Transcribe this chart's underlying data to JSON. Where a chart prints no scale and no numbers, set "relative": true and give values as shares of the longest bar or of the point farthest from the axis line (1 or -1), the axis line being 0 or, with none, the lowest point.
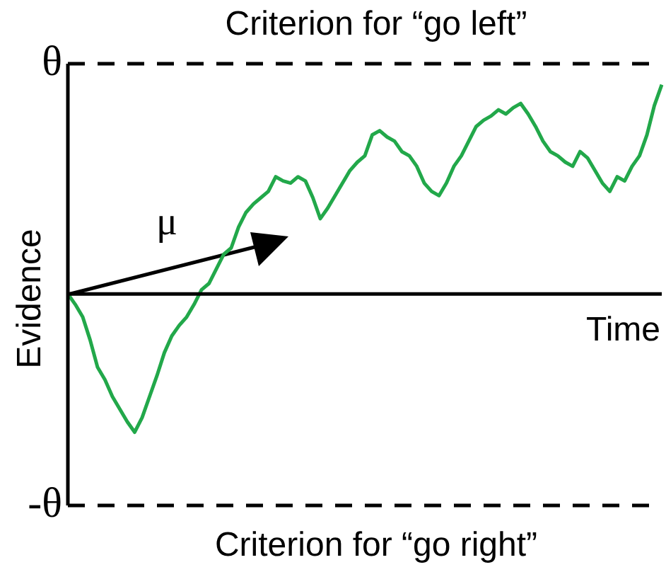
{
  "chart_data": {
    "type": "line",
    "title": "Criterion for “go left”",
    "xlabel": "Time",
    "ylabel": "Evidence",
    "relative": true,
    "tick_labels": false,
    "grid": false,
    "legend": false,
    "marker": "none",
    "line_style": "solid",
    "categories": [
      null,
      null,
      null,
      null,
      null,
      null,
      null,
      null,
      null,
      null,
      null,
      null,
      null,
      null,
      null,
      null,
      null,
      null,
      null,
      null,
      null,
      null,
      null,
      null,
      null,
      null,
      null,
      null,
      null,
      null,
      null,
      null,
      null,
      null,
      null,
      null,
      null,
      null,
      null,
      null,
      null,
      null,
      null,
      null,
      null,
      null,
      null,
      null,
      null,
      null,
      null,
      null,
      null,
      null,
      null,
      null,
      null,
      null,
      null,
      null,
      null,
      null,
      null,
      null,
      null,
      null,
      null,
      null,
      null,
      null,
      null,
      null,
      null,
      null,
      null,
      null,
      null,
      null,
      null,
      null,
      null
    ],
    "series": [
      {
        "color": "#22a84a",
        "values": [
          0,
          -0.05,
          -0.11,
          -0.22,
          -0.35,
          -0.41,
          -0.49,
          -0.55,
          -0.61,
          -0.66,
          -0.59,
          -0.49,
          -0.39,
          -0.28,
          -0.2,
          -0.15,
          -0.11,
          -0.05,
          0.02,
          0.05,
          0.12,
          0.19,
          0.22,
          0.32,
          0.39,
          0.43,
          0.46,
          0.49,
          0.56,
          0.54,
          0.53,
          0.56,
          0.54,
          0.46,
          0.36,
          0.41,
          0.47,
          0.53,
          0.59,
          0.63,
          0.66,
          0.76,
          0.78,
          0.75,
          0.73,
          0.68,
          0.66,
          0.61,
          0.53,
          0.49,
          0.47,
          0.53,
          0.61,
          0.66,
          0.73,
          0.8,
          0.83,
          0.85,
          0.88,
          0.86,
          0.89,
          0.91,
          0.86,
          0.8,
          0.73,
          0.68,
          0.66,
          0.63,
          0.61,
          0.68,
          0.65,
          0.59,
          0.53,
          0.49,
          0.56,
          0.54,
          0.61,
          0.66,
          0.76,
          0.9,
          1
        ]
      }
    ],
    "ref_lines": [
      {
        "axis": "y",
        "value": 1.1,
        "label": "θ",
        "line_style": "dashed",
        "color": "#000000"
      },
      {
        "axis": "y",
        "value": -1.01,
        "label": "-θ",
        "line_style": "dashed",
        "color": "#000000"
      }
    ],
    "annotations": [
      "μ",
      "Criterion for “go right”"
    ]
  }
}
